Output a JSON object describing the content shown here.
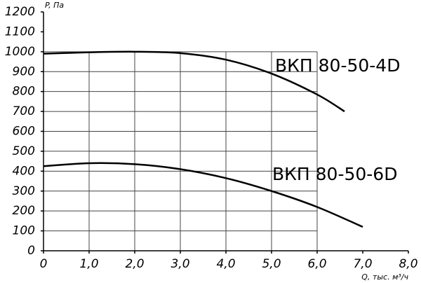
{
  "chart_data": {
    "type": "line",
    "y_label": "P, Па",
    "x_label": "Q, тыс. м³/ч",
    "x": [
      0,
      1.0,
      2.0,
      3.0,
      4.0,
      5.0,
      6.0,
      6.6,
      7.0
    ],
    "series": [
      {
        "name": "ВКП 80-50-4D",
        "color": "#000000",
        "values": [
          990,
          997,
          1000,
          993,
          960,
          890,
          785,
          700,
          null
        ]
      },
      {
        "name": "ВКП 80-50-6D",
        "color": "#000000",
        "values": [
          425,
          440,
          435,
          410,
          365,
          300,
          220,
          null,
          120
        ]
      }
    ],
    "xlim": [
      0,
      8
    ],
    "ylim": [
      0,
      1200
    ],
    "xticks": [
      0,
      {
        "value": 1,
        "label": "1,0"
      },
      {
        "value": 2,
        "label": "2,0"
      },
      {
        "value": 3,
        "label": "3,0"
      },
      {
        "value": 4,
        "label": "4,0"
      },
      {
        "value": 5,
        "label": "5,0"
      },
      {
        "value": 6,
        "label": "6,0"
      },
      {
        "value": 7,
        "label": "7,0"
      },
      {
        "value": 8,
        "label": "8,0"
      }
    ],
    "yticks": [
      0,
      100,
      200,
      300,
      400,
      500,
      600,
      700,
      800,
      900,
      1000,
      1100,
      1200
    ],
    "grid": true
  }
}
